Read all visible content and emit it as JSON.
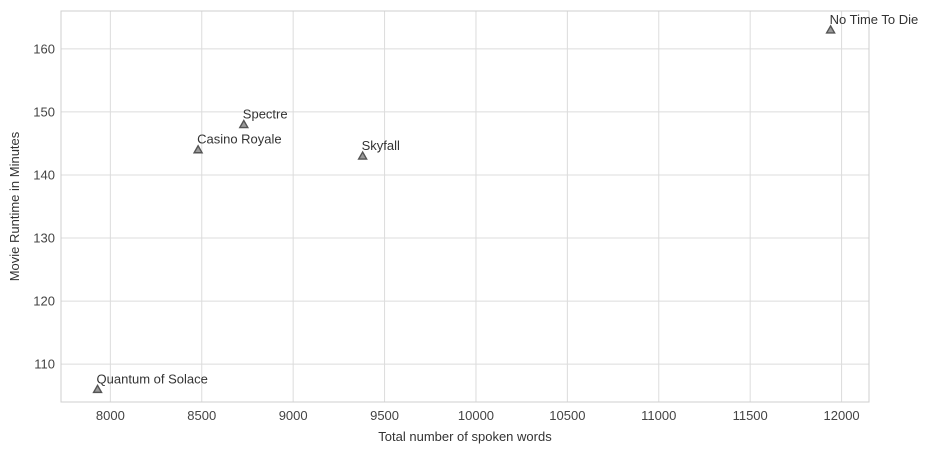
{
  "chart_data": {
    "type": "scatter",
    "title": "",
    "xlabel": "Total number of spoken words",
    "ylabel": "Movie Runtime in Minutes",
    "xlim": [
      7730,
      12150
    ],
    "ylim": [
      104,
      166
    ],
    "xticks": [
      8000,
      8500,
      9000,
      9500,
      10000,
      10500,
      11000,
      11500,
      12000
    ],
    "yticks": [
      110,
      120,
      130,
      140,
      150,
      160
    ],
    "grid": true,
    "marker": "triangle",
    "marker_color": "#555555",
    "points": [
      {
        "label": "No Time To Die",
        "x": 11940,
        "y": 163
      },
      {
        "label": "Spectre",
        "x": 8730,
        "y": 148
      },
      {
        "label": "Casino Royale",
        "x": 8480,
        "y": 144
      },
      {
        "label": "Skyfall",
        "x": 9380,
        "y": 143
      },
      {
        "label": "Quantum of Solace",
        "x": 7930,
        "y": 106
      }
    ]
  }
}
